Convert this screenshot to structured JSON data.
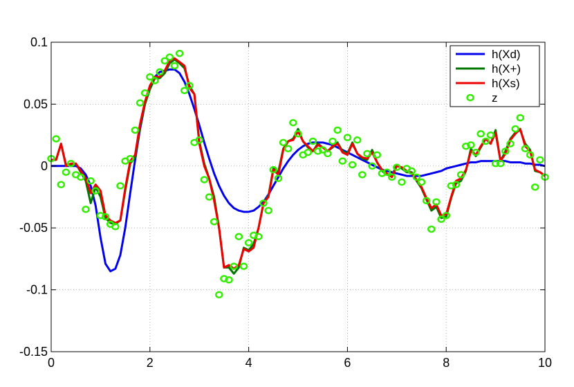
{
  "chart_data": {
    "type": "line",
    "title": "",
    "xlabel": "",
    "ylabel": "",
    "xlim": [
      0,
      10
    ],
    "ylim": [
      -0.15,
      0.1
    ],
    "grid": true,
    "legend_position": "top-right",
    "x_ticks": [
      0,
      2,
      4,
      6,
      8,
      10
    ],
    "x_tick_labels": [
      "0",
      "2",
      "4",
      "6",
      "8",
      "10"
    ],
    "y_ticks": [
      -0.15,
      -0.1,
      -0.05,
      0,
      0.05,
      0.1
    ],
    "y_tick_labels": [
      "-0.15",
      "-0.1",
      "-0.05",
      "0",
      "0.05",
      "0.1"
    ],
    "x": [
      0,
      0.1,
      0.2,
      0.3,
      0.4,
      0.5,
      0.6,
      0.7,
      0.8,
      0.9,
      1.0,
      1.1,
      1.2,
      1.3,
      1.4,
      1.5,
      1.6,
      1.7,
      1.8,
      1.9,
      2.0,
      2.1,
      2.2,
      2.3,
      2.4,
      2.5,
      2.6,
      2.7,
      2.8,
      2.9,
      3.0,
      3.1,
      3.2,
      3.3,
      3.4,
      3.5,
      3.6,
      3.7,
      3.8,
      3.9,
      4.0,
      4.1,
      4.2,
      4.3,
      4.4,
      4.5,
      4.6,
      4.7,
      4.8,
      4.9,
      5.0,
      5.1,
      5.2,
      5.3,
      5.4,
      5.5,
      5.6,
      5.7,
      5.8,
      5.9,
      6.0,
      6.1,
      6.2,
      6.3,
      6.4,
      6.5,
      6.6,
      6.7,
      6.8,
      6.9,
      7.0,
      7.1,
      7.2,
      7.3,
      7.4,
      7.5,
      7.6,
      7.7,
      7.8,
      7.9,
      8.0,
      8.1,
      8.2,
      8.3,
      8.4,
      8.5,
      8.6,
      8.7,
      8.8,
      8.9,
      9.0,
      9.1,
      9.2,
      9.3,
      9.4,
      9.5,
      9.6,
      9.7,
      9.8,
      9.9,
      10.0
    ],
    "series": [
      {
        "name": "h(Xd)",
        "color": "#0000ee",
        "style": "line",
        "values": [
          0,
          0,
          0,
          0,
          0,
          0,
          -0.002,
          -0.007,
          -0.016,
          -0.032,
          -0.058,
          -0.079,
          -0.085,
          -0.083,
          -0.072,
          -0.05,
          -0.022,
          0.005,
          0.03,
          0.05,
          0.064,
          0.072,
          0.076,
          0.077,
          0.078,
          0.078,
          0.075,
          0.068,
          0.058,
          0.046,
          0.033,
          0.019,
          0.006,
          -0.006,
          -0.016,
          -0.024,
          -0.03,
          -0.034,
          -0.036,
          -0.037,
          -0.037,
          -0.036,
          -0.033,
          -0.029,
          -0.023,
          -0.016,
          -0.009,
          -0.002,
          0.004,
          0.009,
          0.013,
          0.016,
          0.018,
          0.019,
          0.019,
          0.019,
          0.018,
          0.017,
          0.015,
          0.013,
          0.011,
          0.009,
          0.007,
          0.005,
          0.003,
          0.001,
          -0.001,
          -0.003,
          -0.004,
          -0.005,
          -0.006,
          -0.007,
          -0.008,
          -0.008,
          -0.008,
          -0.008,
          -0.007,
          -0.006,
          -0.005,
          -0.004,
          -0.002,
          -0.001,
          0.0,
          0.001,
          0.002,
          0.003,
          0.003,
          0.004,
          0.004,
          0.004,
          0.004,
          0.004,
          0.004,
          0.003,
          0.003,
          0.003,
          0.002,
          0.002,
          0.001,
          0.001,
          0.0
        ]
      },
      {
        "name": "h(X+)",
        "color": "#007700",
        "style": "line",
        "values": [
          0.005,
          0.005,
          0.018,
          0.001,
          0.001,
          0.002,
          -0.005,
          -0.012,
          -0.03,
          -0.017,
          -0.025,
          -0.042,
          -0.046,
          -0.047,
          -0.044,
          -0.02,
          0.002,
          0.007,
          0.032,
          0.05,
          0.062,
          0.071,
          0.071,
          0.075,
          0.083,
          0.086,
          0.083,
          0.079,
          0.065,
          0.058,
          0.02,
          0.002,
          -0.01,
          -0.025,
          -0.05,
          -0.082,
          -0.082,
          -0.087,
          -0.082,
          -0.066,
          -0.068,
          -0.063,
          -0.05,
          -0.03,
          -0.024,
          -0.002,
          -0.005,
          0.014,
          0.02,
          0.022,
          0.03,
          0.02,
          0.015,
          0.012,
          0.018,
          0.015,
          0.012,
          0.015,
          0.019,
          0.012,
          0.01,
          0.019,
          0.01,
          0.006,
          0.005,
          0.013,
          0.003,
          -0.004,
          -0.007,
          -0.008,
          0.001,
          -0.002,
          -0.005,
          -0.005,
          -0.012,
          -0.018,
          -0.027,
          -0.036,
          -0.033,
          -0.042,
          -0.041,
          -0.026,
          -0.014,
          -0.012,
          -0.004,
          0.014,
          0.008,
          0.015,
          0.022,
          0.018,
          0.029,
          0.004,
          0.012,
          0.022,
          0.027,
          0.029,
          0.018,
          0.013,
          -0.004,
          -0.005,
          -0.008
        ]
      },
      {
        "name": "h(Xs)",
        "color": "#ee0000",
        "style": "line",
        "values": [
          0.005,
          0.005,
          0.018,
          0.0,
          0.002,
          0.002,
          -0.004,
          -0.01,
          -0.022,
          -0.015,
          -0.02,
          -0.04,
          -0.044,
          -0.046,
          -0.044,
          -0.018,
          0.004,
          0.009,
          0.034,
          0.052,
          0.065,
          0.072,
          0.072,
          0.077,
          0.085,
          0.087,
          0.084,
          0.081,
          0.063,
          0.058,
          0.018,
          0.0,
          -0.01,
          -0.028,
          -0.05,
          -0.082,
          -0.08,
          -0.083,
          -0.08,
          -0.067,
          -0.069,
          -0.066,
          -0.05,
          -0.03,
          -0.025,
          -0.003,
          -0.007,
          0.013,
          0.02,
          0.021,
          0.028,
          0.02,
          0.016,
          0.012,
          0.017,
          0.015,
          0.012,
          0.016,
          0.018,
          0.011,
          0.009,
          0.018,
          0.01,
          0.007,
          0.006,
          0.011,
          0.003,
          -0.003,
          -0.006,
          -0.009,
          0.0,
          -0.001,
          -0.004,
          -0.006,
          -0.011,
          -0.017,
          -0.026,
          -0.034,
          -0.031,
          -0.04,
          -0.039,
          -0.025,
          -0.012,
          -0.01,
          -0.003,
          0.012,
          0.009,
          0.016,
          0.022,
          0.018,
          0.027,
          0.004,
          0.01,
          0.021,
          0.026,
          0.03,
          0.016,
          0.012,
          -0.003,
          -0.005,
          -0.008
        ]
      },
      {
        "name": "z",
        "color": "#33ee00",
        "style": "markers",
        "values": [
          0.006,
          0.022,
          -0.015,
          -0.005,
          0.002,
          -0.007,
          -0.009,
          -0.035,
          -0.012,
          -0.02,
          -0.04,
          -0.041,
          -0.047,
          -0.049,
          -0.016,
          0.004,
          0.006,
          0.029,
          0.051,
          0.059,
          0.072,
          0.069,
          0.076,
          0.085,
          0.088,
          0.081,
          0.091,
          0.061,
          0.065,
          0.019,
          0.021,
          -0.011,
          -0.025,
          -0.045,
          -0.104,
          -0.091,
          -0.092,
          -0.081,
          -0.057,
          -0.081,
          -0.062,
          -0.056,
          -0.057,
          -0.03,
          -0.036,
          -0.003,
          -0.01,
          0.019,
          0.014,
          0.035,
          0.026,
          0.009,
          0.011,
          0.02,
          0.012,
          0.013,
          0.01,
          0.02,
          0.029,
          0.004,
          0.023,
          0.001,
          0.021,
          -0.007,
          0.01,
          0.0,
          0.009,
          -0.006,
          -0.005,
          -0.009,
          -0.001,
          -0.013,
          -0.002,
          -0.004,
          -0.009,
          -0.013,
          -0.028,
          -0.051,
          -0.029,
          -0.043,
          -0.04,
          -0.016,
          -0.015,
          -0.007,
          0.016,
          0.017,
          0.011,
          0.026,
          0.02,
          0.025,
          0.002,
          0.002,
          0.012,
          0.018,
          0.03,
          0.039,
          0.014,
          0.009,
          -0.017,
          0.005,
          -0.009
        ]
      }
    ]
  }
}
